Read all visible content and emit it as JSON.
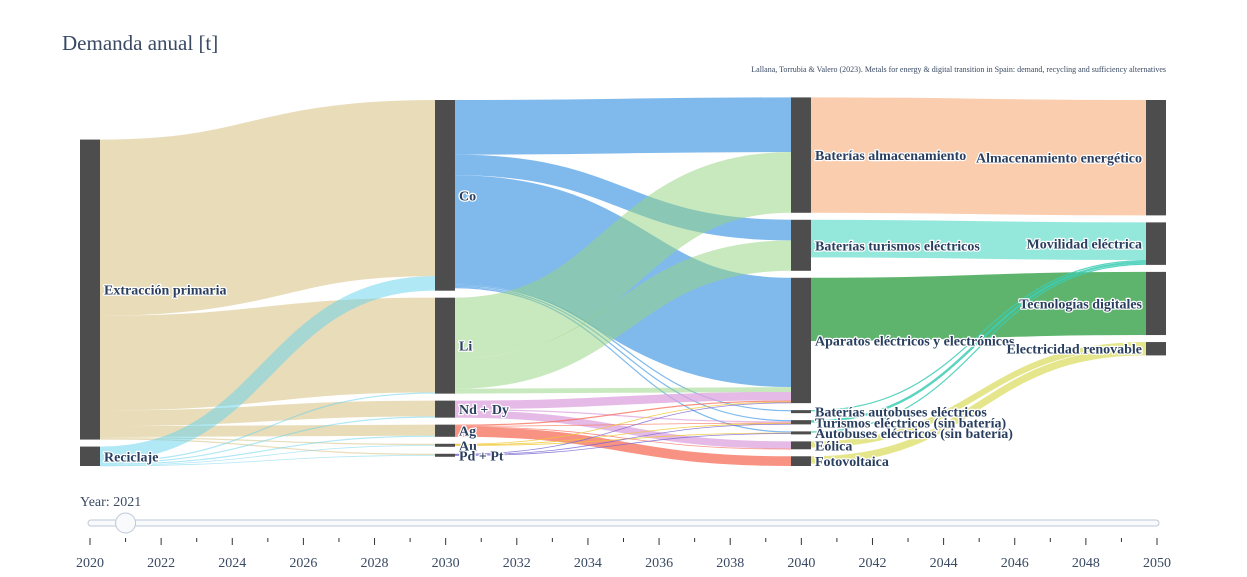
{
  "chart_data": {
    "type": "sankey",
    "title": "Demanda anual [t]",
    "source": "Lallana, Torrubia & Valero (2023). Metals for energy & digital transition in Spain: demand, recycling and sufficiency alternatives",
    "nodes": [
      {
        "id": "extraccion",
        "label": "Extracción primaria",
        "column": 0
      },
      {
        "id": "reciclaje",
        "label": "Reciclaje",
        "column": 0
      },
      {
        "id": "co",
        "label": "Co",
        "column": 1
      },
      {
        "id": "li",
        "label": "Li",
        "column": 1
      },
      {
        "id": "ndpr",
        "label": "Nd + Dy",
        "column": 1
      },
      {
        "id": "ag",
        "label": "Ag",
        "column": 1
      },
      {
        "id": "au",
        "label": "Au",
        "column": 1
      },
      {
        "id": "pdpt",
        "label": "Pd + Pt",
        "column": 1
      },
      {
        "id": "bat_alm",
        "label": "Baterías almacenamiento",
        "column": 2
      },
      {
        "id": "bat_tur",
        "label": "Baterías turismos eléctricos",
        "column": 2
      },
      {
        "id": "aparatos",
        "label": "Aparatos eléctricos y electrónicos",
        "column": 2
      },
      {
        "id": "bat_bus",
        "label": "Baterías autobuses eléctricos",
        "column": 2
      },
      {
        "id": "tur_sin",
        "label": "Turismos eléctricos (sin batería)",
        "column": 2
      },
      {
        "id": "bus_sin",
        "label": "Autobuses eléctricos (sin batería)",
        "column": 2
      },
      {
        "id": "eolica",
        "label": "Eólica",
        "column": 2
      },
      {
        "id": "fotov",
        "label": "Fotovoltaica",
        "column": 2
      },
      {
        "id": "almac",
        "label": "Almacenamiento energético",
        "column": 3
      },
      {
        "id": "movil",
        "label": "Movilidad eléctrica",
        "column": 3
      },
      {
        "id": "tecdig",
        "label": "Tecnologías digitales",
        "column": 3
      },
      {
        "id": "elecren",
        "label": "Electricidad renovable",
        "column": 3
      }
    ],
    "links": [
      {
        "source": "extraccion",
        "target": "co",
        "value": 145,
        "color": "rgba(214,192,128,0.55)"
      },
      {
        "source": "extraccion",
        "target": "li",
        "value": 78,
        "color": "rgba(214,192,128,0.55)"
      },
      {
        "source": "extraccion",
        "target": "ndpr",
        "value": 13,
        "color": "rgba(214,192,128,0.55)"
      },
      {
        "source": "extraccion",
        "target": "ag",
        "value": 9,
        "color": "rgba(214,192,128,0.55)"
      },
      {
        "source": "extraccion",
        "target": "au",
        "value": 1,
        "color": "rgba(214,192,128,0.55)"
      },
      {
        "source": "extraccion",
        "target": "pdpt",
        "value": 1,
        "color": "rgba(214,192,128,0.55)"
      },
      {
        "source": "reciclaje",
        "target": "co",
        "value": 12,
        "color": "rgba(100,210,235,0.5)"
      },
      {
        "source": "reciclaje",
        "target": "li",
        "value": 1,
        "color": "rgba(100,210,235,0.5)"
      },
      {
        "source": "reciclaje",
        "target": "ndpr",
        "value": 1,
        "color": "rgba(100,210,235,0.5)"
      },
      {
        "source": "reciclaje",
        "target": "ag",
        "value": 1,
        "color": "rgba(100,210,235,0.5)"
      },
      {
        "source": "reciclaje",
        "target": "au",
        "value": 0.5,
        "color": "rgba(100,210,235,0.5)"
      },
      {
        "source": "reciclaje",
        "target": "pdpt",
        "value": 0.5,
        "color": "rgba(100,210,235,0.5)"
      },
      {
        "source": "co",
        "target": "bat_alm",
        "value": 45,
        "color": "rgba(79,160,230,0.72)"
      },
      {
        "source": "co",
        "target": "bat_tur",
        "value": 17,
        "color": "rgba(79,160,230,0.72)"
      },
      {
        "source": "co",
        "target": "aparatos",
        "value": 90,
        "color": "rgba(79,160,230,0.72)"
      },
      {
        "source": "co",
        "target": "bat_bus",
        "value": 1,
        "color": "rgba(79,160,230,0.72)"
      },
      {
        "source": "co",
        "target": "tur_sin",
        "value": 1,
        "color": "rgba(79,160,230,0.72)"
      },
      {
        "source": "co",
        "target": "bus_sin",
        "value": 1,
        "color": "rgba(79,160,230,0.72)"
      },
      {
        "source": "li",
        "target": "bat_alm",
        "value": 50,
        "color": "rgba(150,210,130,0.52)"
      },
      {
        "source": "li",
        "target": "bat_tur",
        "value": 25,
        "color": "rgba(150,210,130,0.52)"
      },
      {
        "source": "li",
        "target": "aparatos",
        "value": 4,
        "color": "rgba(150,210,130,0.52)"
      },
      {
        "source": "ndpr",
        "target": "aparatos",
        "value": 7,
        "color": "rgba(220,160,220,0.72)"
      },
      {
        "source": "ndpr",
        "target": "eolica",
        "value": 6,
        "color": "rgba(220,160,220,0.72)"
      },
      {
        "source": "ndpr",
        "target": "tur_sin",
        "value": 1,
        "color": "rgba(220,160,220,0.72)"
      },
      {
        "source": "ag",
        "target": "fotov",
        "value": 8,
        "color": "rgba(245,110,90,0.75)"
      },
      {
        "source": "ag",
        "target": "aparatos",
        "value": 1,
        "color": "rgba(245,110,90,0.75)"
      },
      {
        "source": "ag",
        "target": "tur_sin",
        "value": 0.5,
        "color": "rgba(245,110,90,0.75)"
      },
      {
        "source": "ag",
        "target": "eolica",
        "value": 0.5,
        "color": "rgba(245,110,90,0.75)"
      },
      {
        "source": "au",
        "target": "aparatos",
        "value": 0.6,
        "color": "rgba(240,200,50,0.85)"
      },
      {
        "source": "au",
        "target": "tur_sin",
        "value": 0.5,
        "color": "rgba(240,200,50,0.85)"
      },
      {
        "source": "au",
        "target": "bus_sin",
        "value": 0.4,
        "color": "rgba(240,200,50,0.85)"
      },
      {
        "source": "pdpt",
        "target": "aparatos",
        "value": 0.6,
        "color": "rgba(120,100,210,0.8)"
      },
      {
        "source": "pdpt",
        "target": "tur_sin",
        "value": 0.5,
        "color": "rgba(120,100,210,0.8)"
      },
      {
        "source": "pdpt",
        "target": "bus_sin",
        "value": 0.4,
        "color": "rgba(120,100,210,0.8)"
      },
      {
        "source": "bat_alm",
        "target": "almac",
        "value": 95,
        "color": "rgba(247,178,130,0.65)"
      },
      {
        "source": "bat_tur",
        "target": "movil",
        "value": 31,
        "color": "rgba(90,220,200,0.65)"
      },
      {
        "source": "bat_bus",
        "target": "movil",
        "value": 1,
        "color": "rgba(60,205,180,0.85)"
      },
      {
        "source": "tur_sin",
        "target": "movil",
        "value": 2,
        "color": "rgba(60,205,180,0.85)"
      },
      {
        "source": "bus_sin",
        "target": "movil",
        "value": 1,
        "color": "rgba(60,205,180,0.85)"
      },
      {
        "source": "aparatos",
        "target": "tecdig",
        "value": 52,
        "color": "rgba(40,155,60,0.75)"
      },
      {
        "source": "eolica",
        "target": "elecren",
        "value": 5,
        "color": "rgba(225,225,120,0.85)"
      },
      {
        "source": "fotov",
        "target": "elecren",
        "value": 6,
        "color": "rgba(225,225,120,0.85)"
      }
    ],
    "node_color": "#4d4d4d",
    "slider": {
      "label": "Year: 2021",
      "current": 2021,
      "min": 2020,
      "max": 2050,
      "ticks": [
        "2020",
        "2022",
        "2024",
        "2026",
        "2028",
        "2030",
        "2032",
        "2034",
        "2036",
        "2038",
        "2040",
        "2042",
        "2044",
        "2046",
        "2048",
        "2050"
      ]
    }
  }
}
